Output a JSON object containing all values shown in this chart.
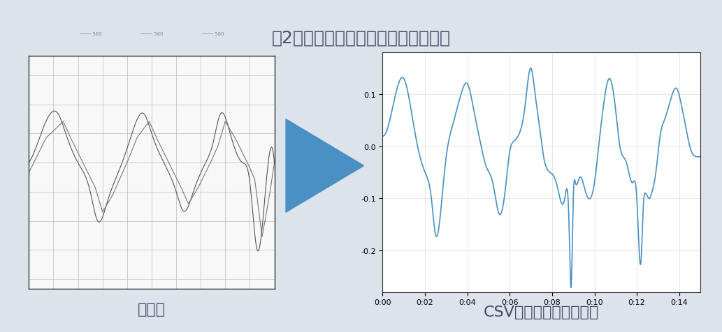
{
  "title": "図2　三角波のような形状の零相電流",
  "title_color": "#4a4a6a",
  "title_fontsize": 18,
  "bg_color": "#dde3ea",
  "panel_bg": "#ffffff",
  "arrow_color": "#4a90c4",
  "label_left": "元画像",
  "label_right": "CSVから再構成した画像",
  "label_fontsize": 16,
  "label_color": "#4a4a6a",
  "line_color": "#4a90c4",
  "line_color2": "#555555",
  "yticks": [
    0.1,
    0.0,
    -0.1,
    -0.2
  ],
  "ytick_labels": [
    "0.1",
    "0.0",
    "-0.1",
    "-0.2"
  ],
  "xticks": [
    0.0,
    0.02,
    0.04,
    0.06,
    0.08,
    0.1,
    0.12,
    0.14
  ],
  "xtick_labels": [
    "0:00",
    "0:02",
    "0:04",
    "0:06",
    "0:08",
    "0:10",
    "0:12",
    "0:14"
  ],
  "ylim": [
    -0.28,
    0.18
  ],
  "xlim": [
    0.0,
    0.15
  ]
}
